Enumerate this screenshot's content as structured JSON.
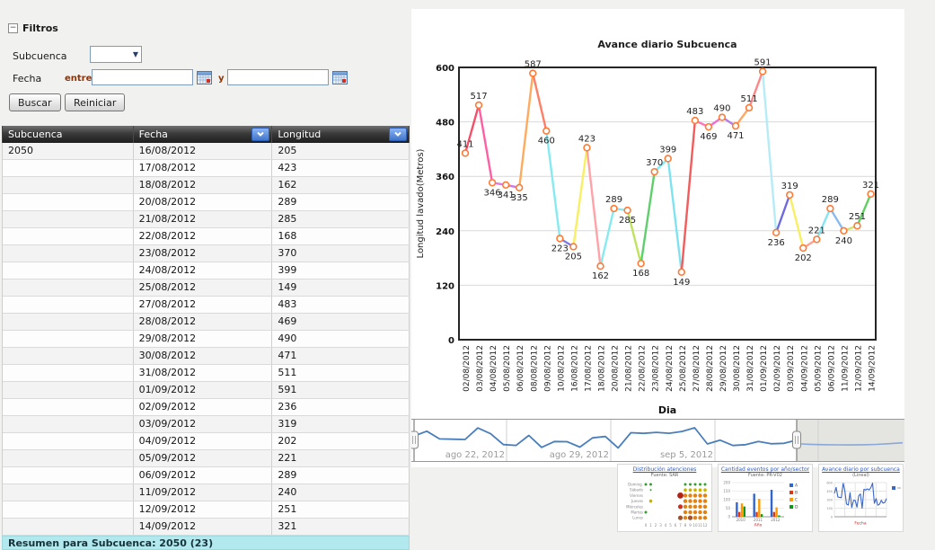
{
  "filters": {
    "title": "Filtros",
    "subcuenca_label": "Subcuenca",
    "subcuenca_value": "",
    "fecha_label": "Fecha",
    "entre_label": "entre",
    "y_label": "y",
    "fecha_from_value": "",
    "fecha_to_value": "",
    "buscar_label": "Buscar",
    "reiniciar_label": "Reiniciar",
    "icons": {
      "collapse": "minus-box",
      "select_arrow": "chevron-down",
      "calendar": "calendar-grid"
    }
  },
  "table": {
    "columns": [
      "Subcuenca",
      "Fecha",
      "Longitud"
    ],
    "rows": [
      [
        "2050",
        "16/08/2012",
        "205"
      ],
      [
        "",
        "17/08/2012",
        "423"
      ],
      [
        "",
        "18/08/2012",
        "162"
      ],
      [
        "",
        "20/08/2012",
        "289"
      ],
      [
        "",
        "21/08/2012",
        "285"
      ],
      [
        "",
        "22/08/2012",
        "168"
      ],
      [
        "",
        "23/08/2012",
        "370"
      ],
      [
        "",
        "24/08/2012",
        "399"
      ],
      [
        "",
        "25/08/2012",
        "149"
      ],
      [
        "",
        "27/08/2012",
        "483"
      ],
      [
        "",
        "28/08/2012",
        "469"
      ],
      [
        "",
        "29/08/2012",
        "490"
      ],
      [
        "",
        "30/08/2012",
        "471"
      ],
      [
        "",
        "31/08/2012",
        "511"
      ],
      [
        "",
        "01/09/2012",
        "591"
      ],
      [
        "",
        "02/09/2012",
        "236"
      ],
      [
        "",
        "03/09/2012",
        "319"
      ],
      [
        "",
        "04/09/2012",
        "202"
      ],
      [
        "",
        "05/09/2012",
        "221"
      ],
      [
        "",
        "06/09/2012",
        "289"
      ],
      [
        "",
        "11/09/2012",
        "240"
      ],
      [
        "",
        "12/09/2012",
        "251"
      ],
      [
        "",
        "14/09/2012",
        "321"
      ]
    ],
    "summary": "Resumen para Subcuenca: 2050 (23)",
    "summary_bg": "#b2e9ee"
  },
  "chart_data": {
    "type": "line",
    "title": "Avance diario Subcuenca",
    "xlabel": "Dia",
    "ylabel": "Longitud lavado(Metros)",
    "ylim": [
      0,
      600
    ],
    "yticks": [
      0,
      120,
      240,
      360,
      480,
      600
    ],
    "grid": true,
    "categories": [
      "02/08/2012",
      "03/08/2012",
      "04/08/2012",
      "05/08/2012",
      "06/08/2012",
      "08/08/2012",
      "09/08/2012",
      "10/08/2012",
      "16/08/2012",
      "17/08/2012",
      "18/08/2012",
      "20/08/2012",
      "21/08/2012",
      "22/08/2012",
      "23/08/2012",
      "24/08/2012",
      "25/08/2012",
      "27/08/2012",
      "28/08/2012",
      "29/08/2012",
      "30/08/2012",
      "31/08/2012",
      "01/09/2012",
      "02/09/2012",
      "03/09/2012",
      "04/09/2012",
      "05/09/2012",
      "06/09/2012",
      "11/09/2012",
      "12/09/2012",
      "14/09/2012"
    ],
    "values": [
      411,
      517,
      346,
      341,
      335,
      587,
      460,
      223,
      205,
      423,
      162,
      289,
      285,
      168,
      370,
      399,
      149,
      483,
      469,
      490,
      471,
      511,
      591,
      236,
      319,
      202,
      221,
      289,
      240,
      251,
      321
    ],
    "label_positions": [
      "above",
      "above",
      "below",
      "below",
      "below",
      "above",
      "below",
      "below",
      "below",
      "above",
      "below",
      "above",
      "below",
      "below",
      "above",
      "above",
      "below",
      "above",
      "below",
      "above",
      "below",
      "above",
      "above",
      "below",
      "above",
      "below",
      "above",
      "above",
      "below",
      "above",
      "above"
    ],
    "point_color": "#ff7a35",
    "segment_colors": [
      "#f4506a",
      "#ff5fa2",
      "#e07ae0",
      "#c97ae8",
      "#ffab5e",
      "#ff7f66",
      "#86ebf0",
      "#7d7ce8",
      "#f8ef62",
      "#ffa3a8",
      "#86ebf0",
      "#8fe6ee",
      "#bfe35f",
      "#5ecf6b",
      "#86ebf0",
      "#7fe3ef",
      "#f25c5c",
      "#ff74b8",
      "#ef6fd2",
      "#b57de8",
      "#ffa763",
      "#ff8787",
      "#b5ecf7",
      "#6f6adf",
      "#f8ef62",
      "#ffa18f",
      "#86e5f2",
      "#8abaee",
      "#cde36a",
      "#62cf62"
    ]
  },
  "range_slider": {
    "tick_labels": [
      "ago 22, 2012",
      "ago 29, 2012",
      "sep 5, 2012"
    ],
    "line_color": "#4a7ebb",
    "tail_line_color": "#8aa8d6",
    "unselected_bg": "#e4e4e1",
    "tail_values": [
      240,
      228,
      220,
      216,
      215,
      218,
      226,
      242,
      262
    ]
  },
  "thumbnails": [
    {
      "type": "bubble",
      "title": "Distribución atenciones",
      "subtitle": "Fuente: SAR",
      "rows": [
        "Doming.",
        "Sábado",
        "Viernes",
        "Jueves",
        "Miércoles",
        "Martes",
        "Lunes"
      ],
      "xticks": [
        "0",
        "1",
        "2",
        "3",
        "4",
        "5",
        "6",
        "7",
        "8",
        "9",
        "10",
        "11",
        "12"
      ],
      "colors": {
        "g": "#33a02c",
        "y": "#c9b200",
        "o": "#e08214",
        "r": "#d03020",
        "R": "#b22214",
        "b": "#a0522d"
      },
      "dots": [
        [
          0,
          0,
          "g",
          1.5
        ],
        [
          0,
          1,
          "g",
          1.5
        ],
        [
          0,
          8,
          "g",
          1.5
        ],
        [
          0,
          9,
          "g",
          1.5
        ],
        [
          0,
          10,
          "g",
          1.5
        ],
        [
          0,
          11,
          "g",
          1.5
        ],
        [
          0,
          12,
          "g",
          1.5
        ],
        [
          1,
          1,
          "g",
          1.0
        ],
        [
          1,
          8,
          "y",
          1.8
        ],
        [
          1,
          9,
          "y",
          1.8
        ],
        [
          1,
          10,
          "y",
          1.8
        ],
        [
          1,
          11,
          "y",
          1.8
        ],
        [
          1,
          12,
          "y",
          1.8
        ],
        [
          2,
          7,
          "R",
          3.4
        ],
        [
          2,
          8,
          "o",
          2.2
        ],
        [
          2,
          9,
          "o",
          2.2
        ],
        [
          2,
          10,
          "o",
          2.2
        ],
        [
          2,
          11,
          "o",
          2.2
        ],
        [
          2,
          12,
          "o",
          2.2
        ],
        [
          3,
          1,
          "y",
          1.8
        ],
        [
          3,
          8,
          "o",
          2.2
        ],
        [
          3,
          9,
          "o",
          2.2
        ],
        [
          3,
          10,
          "o",
          2.2
        ],
        [
          3,
          11,
          "o",
          2.2
        ],
        [
          3,
          12,
          "o",
          2.2
        ],
        [
          4,
          7,
          "r",
          2.6
        ],
        [
          4,
          8,
          "o",
          2.2
        ],
        [
          4,
          9,
          "o",
          2.2
        ],
        [
          4,
          10,
          "o",
          2.2
        ],
        [
          4,
          11,
          "o",
          2.2
        ],
        [
          4,
          12,
          "o",
          2.2
        ],
        [
          5,
          0,
          "g",
          1.5
        ],
        [
          5,
          8,
          "o",
          2.2
        ],
        [
          5,
          9,
          "o",
          2.2
        ],
        [
          5,
          10,
          "o",
          2.2
        ],
        [
          5,
          11,
          "o",
          2.2
        ],
        [
          5,
          12,
          "o",
          2.2
        ],
        [
          6,
          7,
          "b",
          2.6
        ],
        [
          6,
          8,
          "o",
          2.2
        ],
        [
          6,
          9,
          "b",
          2.6
        ],
        [
          6,
          10,
          "o",
          2.2
        ],
        [
          6,
          11,
          "o",
          2.2
        ],
        [
          6,
          12,
          "o",
          2.2
        ]
      ]
    },
    {
      "type": "bars",
      "title": "Cantidad eventos por año/sector",
      "subtitle": "Fuente: PR-V02",
      "categories": [
        "2010",
        "2011",
        "2012"
      ],
      "xlabel": "Año",
      "yticks": [
        0,
        50,
        100,
        150,
        200
      ],
      "series": [
        {
          "name": "A",
          "color": "#3366cc",
          "values": [
            85,
            135,
            158
          ]
        },
        {
          "name": "B",
          "color": "#dc3912",
          "values": [
            28,
            28,
            28
          ]
        },
        {
          "name": "C",
          "color": "#ff9900",
          "values": [
            78,
            105,
            55
          ]
        },
        {
          "name": "D",
          "color": "#109618",
          "values": [
            60,
            15,
            8
          ]
        }
      ]
    },
    {
      "type": "line",
      "title": "Avance diario por subcuenca",
      "subtitle": "(Lineal)",
      "xlabel": "Fecha",
      "yticks": [
        600,
        450,
        300,
        150,
        0
      ],
      "line_color": "#3a66c9"
    }
  ]
}
